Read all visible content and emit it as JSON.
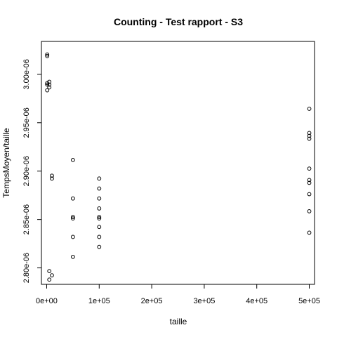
{
  "chart_data": {
    "type": "scatter",
    "title": "Counting - Test rapport - S3",
    "xlabel": "taille",
    "ylabel": "TempsMoyen/taille",
    "xlim": [
      -10000,
      510000
    ],
    "ylim": [
      2.783e-06,
      3.034e-06
    ],
    "x_ticks": [
      {
        "value": 0,
        "label": "0e+00"
      },
      {
        "value": 100000,
        "label": "1e+05"
      },
      {
        "value": 200000,
        "label": "2e+05"
      },
      {
        "value": 300000,
        "label": "3e+05"
      },
      {
        "value": 400000,
        "label": "4e+05"
      },
      {
        "value": 500000,
        "label": "5e+05"
      }
    ],
    "y_ticks": [
      {
        "value": 2.8e-06,
        "label": "2.80e-06"
      },
      {
        "value": 2.85e-06,
        "label": "2.85e-06"
      },
      {
        "value": 2.9e-06,
        "label": "2.90e-06"
      },
      {
        "value": 2.95e-06,
        "label": "2.95e-06"
      },
      {
        "value": 3e-06,
        "label": "3.00e-06"
      }
    ],
    "grid": false,
    "legend": "none",
    "marker": "open-circle",
    "points": [
      {
        "x": 1000,
        "y": 3.0205e-06
      },
      {
        "x": 1000,
        "y": 3.0189e-06
      },
      {
        "x": 1000,
        "y": 2.9909e-06
      },
      {
        "x": 1000,
        "y": 2.9894e-06
      },
      {
        "x": 1000,
        "y": 2.9835e-06
      },
      {
        "x": 5000,
        "y": 2.9923e-06
      },
      {
        "x": 5000,
        "y": 2.9894e-06
      },
      {
        "x": 5000,
        "y": 2.9865e-06
      },
      {
        "x": 5000,
        "y": 2.7967e-06
      },
      {
        "x": 5000,
        "y": 2.7879e-06
      },
      {
        "x": 10000,
        "y": 2.8952e-06
      },
      {
        "x": 10000,
        "y": 2.8923e-06
      },
      {
        "x": 10000,
        "y": 2.7923e-06
      },
      {
        "x": 50000,
        "y": 2.9115e-06
      },
      {
        "x": 50000,
        "y": 2.8717e-06
      },
      {
        "x": 50000,
        "y": 2.8526e-06
      },
      {
        "x": 50000,
        "y": 2.8511e-06
      },
      {
        "x": 50000,
        "y": 2.832e-06
      },
      {
        "x": 50000,
        "y": 2.8114e-06
      },
      {
        "x": 100000,
        "y": 2.8923e-06
      },
      {
        "x": 100000,
        "y": 2.882e-06
      },
      {
        "x": 100000,
        "y": 2.8717e-06
      },
      {
        "x": 100000,
        "y": 2.8614e-06
      },
      {
        "x": 100000,
        "y": 2.8526e-06
      },
      {
        "x": 100000,
        "y": 2.8511e-06
      },
      {
        "x": 100000,
        "y": 2.8423e-06
      },
      {
        "x": 100000,
        "y": 2.832e-06
      },
      {
        "x": 100000,
        "y": 2.8217e-06
      },
      {
        "x": 500000,
        "y": 2.9644e-06
      },
      {
        "x": 500000,
        "y": 2.9394e-06
      },
      {
        "x": 500000,
        "y": 2.9364e-06
      },
      {
        "x": 500000,
        "y": 2.9335e-06
      },
      {
        "x": 500000,
        "y": 2.9026e-06
      },
      {
        "x": 500000,
        "y": 2.8908e-06
      },
      {
        "x": 500000,
        "y": 2.8879e-06
      },
      {
        "x": 500000,
        "y": 2.8762e-06
      },
      {
        "x": 500000,
        "y": 2.8585e-06
      },
      {
        "x": 500000,
        "y": 2.8364e-06
      }
    ]
  }
}
